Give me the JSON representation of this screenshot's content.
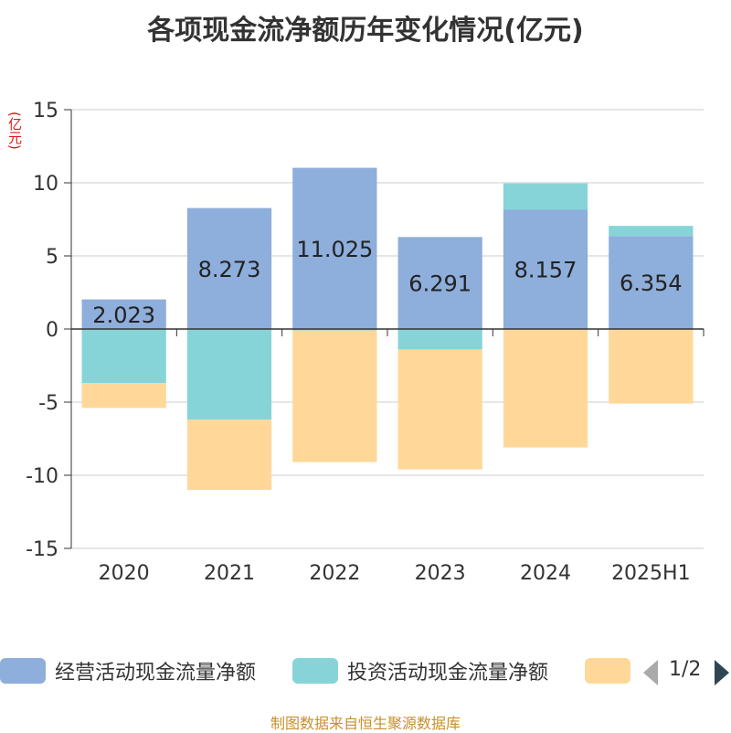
{
  "title": "各项现金流净额历年变化情况(亿元)",
  "source": "制图数据来自恒生聚源数据库",
  "colors": {
    "operating": "#8eaedb",
    "investing": "#86d4d8",
    "financing": "#ffd899",
    "grid": "#cccccc",
    "axis": "#333333"
  },
  "legend": {
    "items": [
      {
        "label": "经营活动现金流量净额",
        "color": "#8eaedb"
      },
      {
        "label": "投资活动现金流量净额",
        "color": "#86d4d8"
      },
      {
        "label": "",
        "color": "#ffd899"
      }
    ],
    "page": "1/2"
  },
  "chart_data": {
    "type": "bar",
    "stacked": true,
    "unit_label": "(亿元)",
    "categories": [
      "2020",
      "2021",
      "2022",
      "2023",
      "2024",
      "2025H1"
    ],
    "ylim": [
      -15,
      15
    ],
    "yticks": [
      15,
      10,
      5,
      0,
      -5,
      -10,
      -15
    ],
    "grid": true,
    "legend_position": "bottom",
    "series": [
      {
        "name": "经营活动现金流量净额",
        "values": [
          2.023,
          8.273,
          11.025,
          6.291,
          8.157,
          6.354
        ],
        "show_labels": true
      },
      {
        "name": "投资活动现金流量净额",
        "values": [
          -3.7,
          -6.2,
          -0.1,
          -1.4,
          1.8,
          0.7
        ],
        "show_labels": false
      },
      {
        "name": "",
        "values": [
          -1.7,
          -4.8,
          -9.0,
          -8.2,
          -8.1,
          -5.1
        ],
        "show_labels": false
      }
    ]
  }
}
